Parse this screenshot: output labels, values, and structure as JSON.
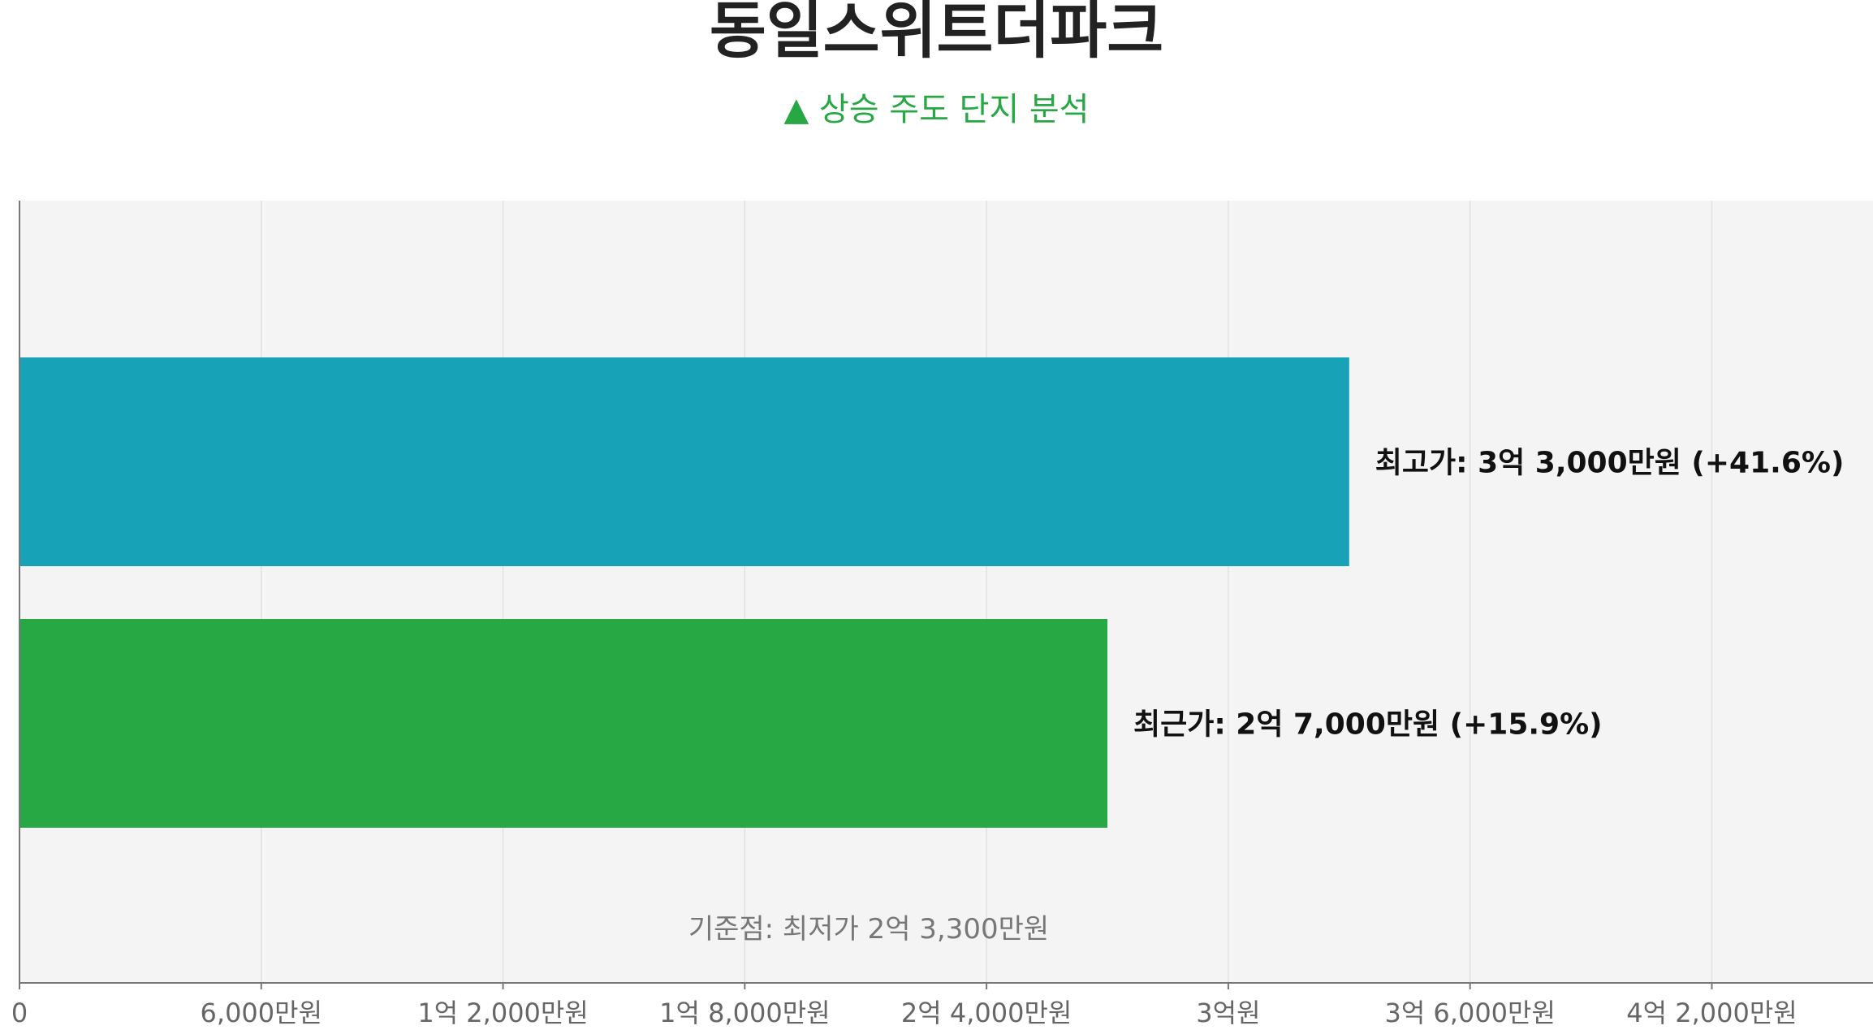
{
  "title": "동일스위트더파크",
  "subtitle": "▲ 상승 주도 단지 분석",
  "colors": {
    "plot_bg": "#f4f4f4",
    "grid": "#e2e2e2",
    "axis": "#777777",
    "tick_text": "#666666",
    "label_text": "#111111",
    "annotation_text": "#777777",
    "subtitle": "#28a745"
  },
  "chart_data": {
    "type": "bar",
    "orientation": "horizontal",
    "xlim": [
      0,
      460000000
    ],
    "x_ticks": [
      {
        "value": 0,
        "label": "0"
      },
      {
        "value": 60000000,
        "label": "6,000만원"
      },
      {
        "value": 120000000,
        "label": "1억 2,000만원"
      },
      {
        "value": 180000000,
        "label": "1억 8,000만원"
      },
      {
        "value": 240000000,
        "label": "2억 4,000만원"
      },
      {
        "value": 300000000,
        "label": "3억원"
      },
      {
        "value": 360000000,
        "label": "3억 6,000만원"
      },
      {
        "value": 420000000,
        "label": "4억 2,000만원"
      }
    ],
    "bars": [
      {
        "value": 330000000,
        "label": "최고가: 3억 3,000만원 (+41.6%)",
        "color": "#17a2b8"
      },
      {
        "value": 270000000,
        "label": "최근가: 2억 7,000만원 (+15.9%)",
        "color": "#28a745"
      }
    ],
    "annotation": "기준점: 최저가 2억 3,300만원",
    "grid": true
  }
}
